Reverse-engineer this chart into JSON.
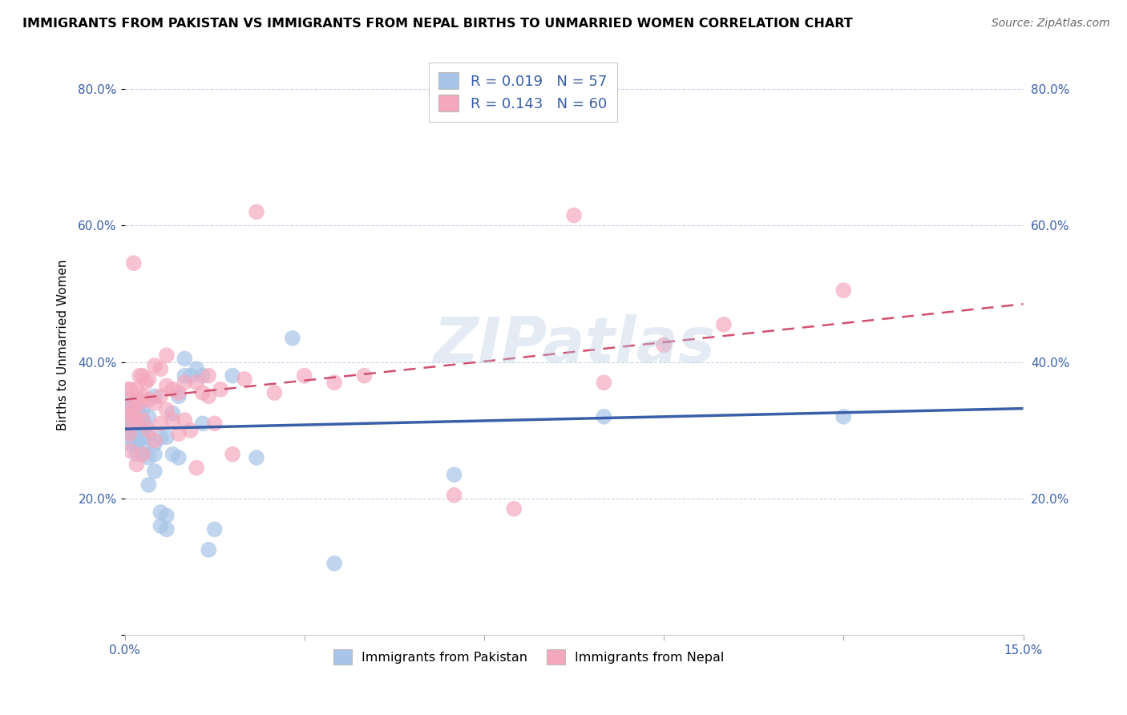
{
  "title": "IMMIGRANTS FROM PAKISTAN VS IMMIGRANTS FROM NEPAL BIRTHS TO UNMARRIED WOMEN CORRELATION CHART",
  "source": "Source: ZipAtlas.com",
  "ylabel": "Births to Unmarried Women",
  "x_min": 0.0,
  "x_max": 0.15,
  "y_min": 0.0,
  "y_max": 0.85,
  "y_ticks": [
    0.0,
    0.2,
    0.4,
    0.6,
    0.8
  ],
  "y_tick_labels": [
    "",
    "20.0%",
    "40.0%",
    "60.0%",
    "80.0%"
  ],
  "pakistan_color": "#a8c4e8",
  "nepal_color": "#f4a8be",
  "pakistan_line_color": "#3a5fa8",
  "nepal_line_color": "#d05070",
  "watermark": "ZIPatlas",
  "pakistan_x": [
    0.0005,
    0.0005,
    0.0005,
    0.0008,
    0.001,
    0.001,
    0.001,
    0.001,
    0.001,
    0.0015,
    0.0015,
    0.002,
    0.002,
    0.002,
    0.002,
    0.002,
    0.0025,
    0.0025,
    0.003,
    0.003,
    0.003,
    0.003,
    0.003,
    0.0035,
    0.004,
    0.004,
    0.004,
    0.004,
    0.005,
    0.005,
    0.005,
    0.005,
    0.006,
    0.006,
    0.006,
    0.007,
    0.007,
    0.007,
    0.008,
    0.008,
    0.009,
    0.009,
    0.01,
    0.01,
    0.011,
    0.012,
    0.013,
    0.013,
    0.014,
    0.015,
    0.018,
    0.022,
    0.028,
    0.035,
    0.055,
    0.08,
    0.12
  ],
  "pakistan_y": [
    0.305,
    0.315,
    0.335,
    0.295,
    0.28,
    0.3,
    0.315,
    0.325,
    0.345,
    0.285,
    0.295,
    0.265,
    0.28,
    0.295,
    0.305,
    0.33,
    0.31,
    0.325,
    0.265,
    0.275,
    0.29,
    0.315,
    0.33,
    0.305,
    0.22,
    0.26,
    0.29,
    0.32,
    0.24,
    0.265,
    0.28,
    0.35,
    0.16,
    0.18,
    0.29,
    0.155,
    0.175,
    0.29,
    0.265,
    0.325,
    0.26,
    0.35,
    0.38,
    0.405,
    0.38,
    0.39,
    0.31,
    0.38,
    0.125,
    0.155,
    0.38,
    0.26,
    0.435,
    0.105,
    0.235,
    0.32,
    0.32
  ],
  "nepal_x": [
    0.0005,
    0.0005,
    0.0008,
    0.001,
    0.001,
    0.001,
    0.001,
    0.0015,
    0.0015,
    0.002,
    0.002,
    0.002,
    0.002,
    0.0025,
    0.0025,
    0.003,
    0.003,
    0.003,
    0.003,
    0.0035,
    0.004,
    0.004,
    0.004,
    0.005,
    0.005,
    0.005,
    0.006,
    0.006,
    0.006,
    0.007,
    0.007,
    0.007,
    0.008,
    0.008,
    0.009,
    0.009,
    0.01,
    0.01,
    0.011,
    0.012,
    0.012,
    0.013,
    0.014,
    0.014,
    0.015,
    0.016,
    0.018,
    0.02,
    0.022,
    0.025,
    0.03,
    0.035,
    0.04,
    0.055,
    0.065,
    0.075,
    0.08,
    0.09,
    0.1,
    0.12
  ],
  "nepal_y": [
    0.325,
    0.36,
    0.295,
    0.27,
    0.315,
    0.335,
    0.36,
    0.33,
    0.545,
    0.25,
    0.315,
    0.345,
    0.36,
    0.34,
    0.38,
    0.265,
    0.315,
    0.35,
    0.38,
    0.37,
    0.3,
    0.345,
    0.375,
    0.285,
    0.34,
    0.395,
    0.31,
    0.35,
    0.39,
    0.33,
    0.365,
    0.41,
    0.315,
    0.36,
    0.295,
    0.355,
    0.315,
    0.37,
    0.3,
    0.245,
    0.37,
    0.355,
    0.35,
    0.38,
    0.31,
    0.36,
    0.265,
    0.375,
    0.62,
    0.355,
    0.38,
    0.37,
    0.38,
    0.205,
    0.185,
    0.615,
    0.37,
    0.425,
    0.455,
    0.505
  ],
  "pak_line_x0": 0.0,
  "pak_line_x1": 0.15,
  "pak_line_y0": 0.302,
  "pak_line_y1": 0.332,
  "nep_line_x0": 0.0,
  "nep_line_x1": 0.15,
  "nep_line_y0": 0.345,
  "nep_line_y1": 0.485
}
